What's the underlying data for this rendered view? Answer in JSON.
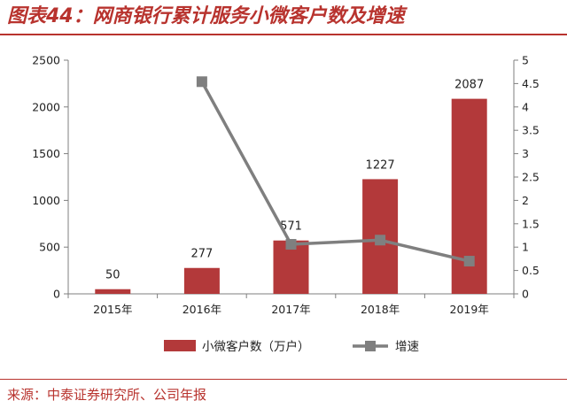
{
  "title": "图表44：网商银行累计服务小微客户数及增速",
  "source": "来源：中泰证券研究所、公司年报",
  "colors": {
    "accent": "#b8332e",
    "bar": "#b3393a",
    "line": "#7f7f7f"
  },
  "chart_data": {
    "type": "bar",
    "categories": [
      "2015年",
      "2016年",
      "2017年",
      "2018年",
      "2019年"
    ],
    "series": [
      {
        "name": "小微客户数（万户）",
        "type": "bar",
        "axis": "left",
        "values": [
          50,
          277,
          571,
          1227,
          2087
        ],
        "labels": [
          "50",
          "277",
          "571",
          "1227",
          "2087"
        ]
      },
      {
        "name": "增速",
        "type": "line",
        "axis": "right",
        "values": [
          null,
          4.54,
          1.06,
          1.15,
          0.7
        ]
      }
    ],
    "y_left": {
      "min": 0,
      "max": 2500,
      "ticks": [
        "0",
        "500",
        "1000",
        "1500",
        "2000",
        "2500"
      ]
    },
    "y_right": {
      "min": 0,
      "max": 5,
      "ticks": [
        "0",
        "0.5",
        "1",
        "1.5",
        "2",
        "2.5",
        "3",
        "3.5",
        "4",
        "4.5",
        "5"
      ]
    },
    "legend_position": "bottom",
    "grid": false
  }
}
